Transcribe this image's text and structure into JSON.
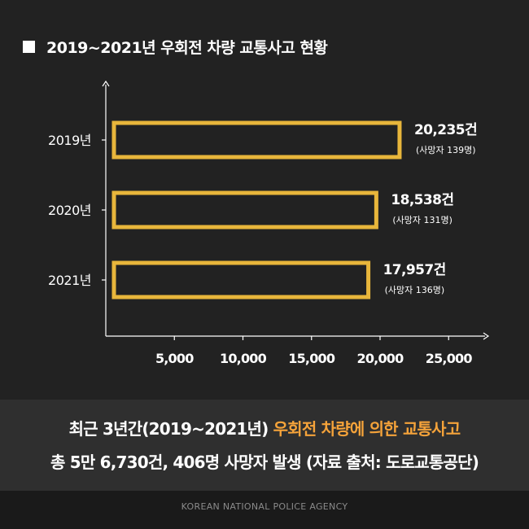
{
  "title": "2019~2021년 우회전 차량 교통사고 현황",
  "colors": {
    "bar_outline": "#e8b63b",
    "highlight": "#f5a33a",
    "background": "#222222",
    "axis": "#ffffff"
  },
  "chart_data": {
    "type": "bar",
    "orientation": "horizontal",
    "categories": [
      "2019년",
      "2020년",
      "2021년"
    ],
    "values": [
      20235,
      18538,
      17957
    ],
    "value_labels": [
      "20,235건",
      "18,538건",
      "17,957건"
    ],
    "sub_labels": [
      "(사망자 139명)",
      "(사망자 131명)",
      "(사망자 136명)"
    ],
    "x_ticks": [
      "5,000",
      "10,000",
      "15,000",
      "20,000",
      "25,000"
    ],
    "x_tick_values": [
      5000,
      10000,
      15000,
      20000,
      25000
    ],
    "xlim": [
      0,
      27500
    ],
    "grid": false
  },
  "summary": {
    "line1_prefix": "최근 3년간(2019~2021년) ",
    "line1_highlight": "우회전 차량에 의한 교통사고",
    "line2": "총 5만 6,730건, 406명 사망자 발생 (자료 출처: 도로교통공단)"
  },
  "footer": "KOREAN NATIONAL POLICE AGENCY"
}
